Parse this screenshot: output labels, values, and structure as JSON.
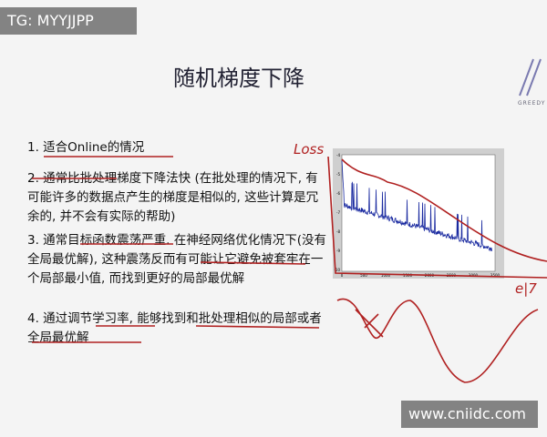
{
  "watermarks": {
    "top": "TG: MYYJJPP",
    "bottom": "www.cniidc.com"
  },
  "slide": {
    "title": "随机梯度下降",
    "logo_text": "GREEDY",
    "items": [
      "1. 适合Online的情况",
      "2. 通常比批处理梯度下降法快 (在批处理的情况下, 有可能许多的数据点产生的梯度是相似的, 这些计算是冗余的, 并不会有实际的帮助)",
      "3. 通常目标函数震荡严重. 在神经网络优化情况下(没有全局最优解), 这种震荡反而有可能让它避免被套牢在一个局部最小值, 而找到更好的局部最优解",
      "4. 通过调节学习率, 能够找到和批处理相似的局部或者全局最优解"
    ],
    "figure": {
      "x_ticks": [
        "0",
        "500",
        "1000",
        "1500",
        "2000",
        "2500",
        "3000",
        "3500"
      ],
      "y_ticks": [
        "-4",
        "-5",
        "-6",
        "-7",
        "-8",
        "-9",
        "-10"
      ],
      "line_color": "#1a2aa0"
    },
    "annotations": {
      "loss": "Loss",
      "x_axis": "e|7",
      "color": "#b02020"
    }
  }
}
